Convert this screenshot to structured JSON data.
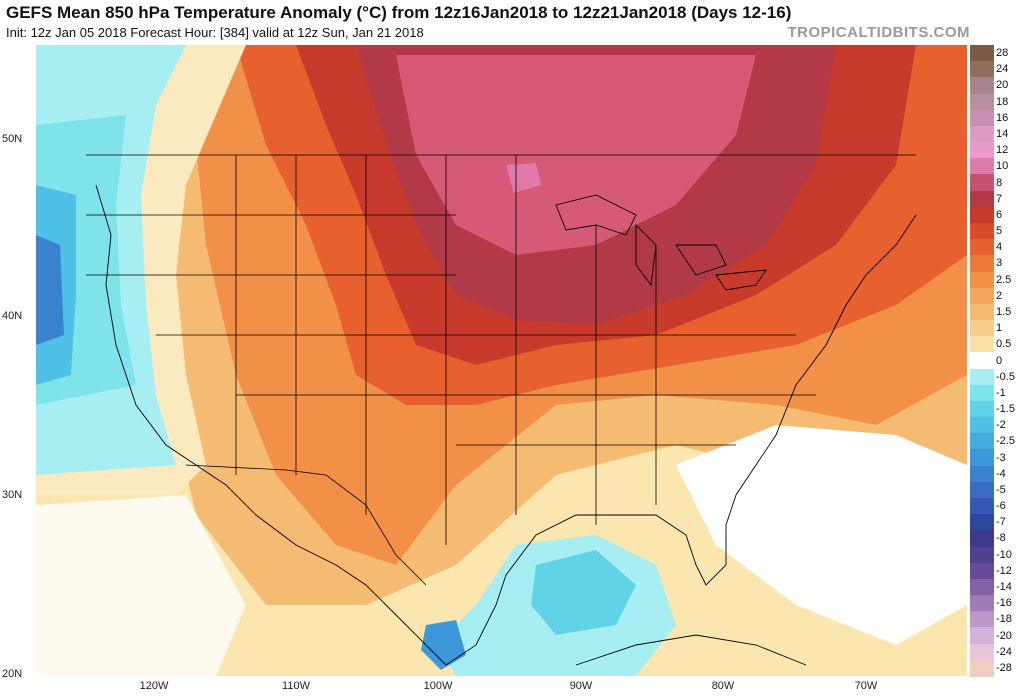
{
  "header": {
    "title": "GEFS Mean 850 hPa Temperature Anomaly (°C) from 12z16Jan2018 to 12z21Jan2018 (Days 12-16)",
    "subtitle": "Init: 12z Jan 05 2018   Forecast Hour: [384]   valid at 12z Sun, Jan 21 2018",
    "brand": "TROPICALTIDBITS.COM"
  },
  "map": {
    "lat_labels": [
      "50N",
      "40N",
      "30N",
      "20N"
    ],
    "lon_labels": [
      "120W",
      "110W",
      "100W",
      "90W",
      "80W",
      "70W"
    ]
  },
  "colorbar": {
    "levels": [
      "28",
      "24",
      "20",
      "18",
      "16",
      "14",
      "12",
      "10",
      "8",
      "7",
      "6",
      "5",
      "4",
      "3",
      "2.5",
      "2",
      "1.5",
      "1",
      "0.5",
      "0",
      "-0.5",
      "-1",
      "-1.5",
      "-2",
      "-2.5",
      "-3",
      "-4",
      "-5",
      "-6",
      "-7",
      "-8",
      "-10",
      "-12",
      "-14",
      "-16",
      "-18",
      "-20",
      "-24",
      "-28"
    ],
    "colors": [
      "#7a5a46",
      "#8f6e5c",
      "#a6848c",
      "#b98fa0",
      "#c790b0",
      "#d99cc4",
      "#ea9acb",
      "#e07aa8",
      "#c85070",
      "#b23a46",
      "#c83a2c",
      "#dc4a2a",
      "#e8602e",
      "#ee7a3a",
      "#f29048",
      "#f4a65c",
      "#f6bb72",
      "#f8ce8a",
      "#fae0a8",
      "#ffffff",
      "#a7eef2",
      "#7fe3ea",
      "#60d3e6",
      "#4fc0e6",
      "#45acdf",
      "#3c98d8",
      "#3a82ce",
      "#3a6cc4",
      "#3558b4",
      "#2f469e",
      "#3d3a8c",
      "#50408e",
      "#6a4a98",
      "#8660a4",
      "#a07cb6",
      "#bb98c8",
      "#d2b2d8",
      "#e6c6d8",
      "#f0cfc0"
    ]
  }
}
